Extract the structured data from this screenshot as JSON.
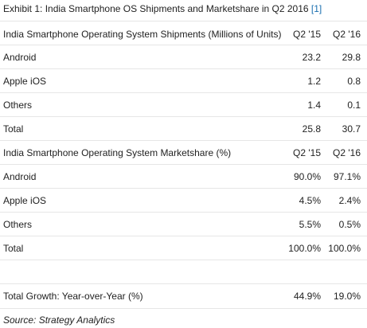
{
  "title": {
    "text": "Exhibit 1: India Smartphone OS Shipments and Marketshare in Q2 2016",
    "ref_link": "[1]",
    "link_color": "#1a6fb0"
  },
  "shipments": {
    "header": {
      "label": "India Smartphone Operating System Shipments (Millions of Units)",
      "c1": "Q2 '15",
      "c2": "Q2 '16"
    },
    "rows": [
      {
        "label": "Android",
        "c1": "23.2",
        "c2": "29.8"
      },
      {
        "label": "Apple iOS",
        "c1": "1.2",
        "c2": "0.8"
      },
      {
        "label": "Others",
        "c1": "1.4",
        "c2": "0.1"
      },
      {
        "label": "Total",
        "c1": "25.8",
        "c2": "30.7"
      }
    ]
  },
  "marketshare": {
    "header": {
      "label": "India Smartphone Operating System Marketshare (%)",
      "c1": "Q2 '15",
      "c2": "Q2 '16"
    },
    "rows": [
      {
        "label": "Android",
        "c1": "90.0%",
        "c2": "97.1%"
      },
      {
        "label": "Apple iOS",
        "c1": "4.5%",
        "c2": "2.4%"
      },
      {
        "label": "Others",
        "c1": "5.5%",
        "c2": "0.5%"
      },
      {
        "label": "Total",
        "c1": "100.0%",
        "c2": "100.0%"
      }
    ]
  },
  "growth": {
    "label": "Total Growth: Year-over-Year (%)",
    "c1": "44.9%",
    "c2": "19.0%"
  },
  "source": "Source: Strategy Analytics"
}
